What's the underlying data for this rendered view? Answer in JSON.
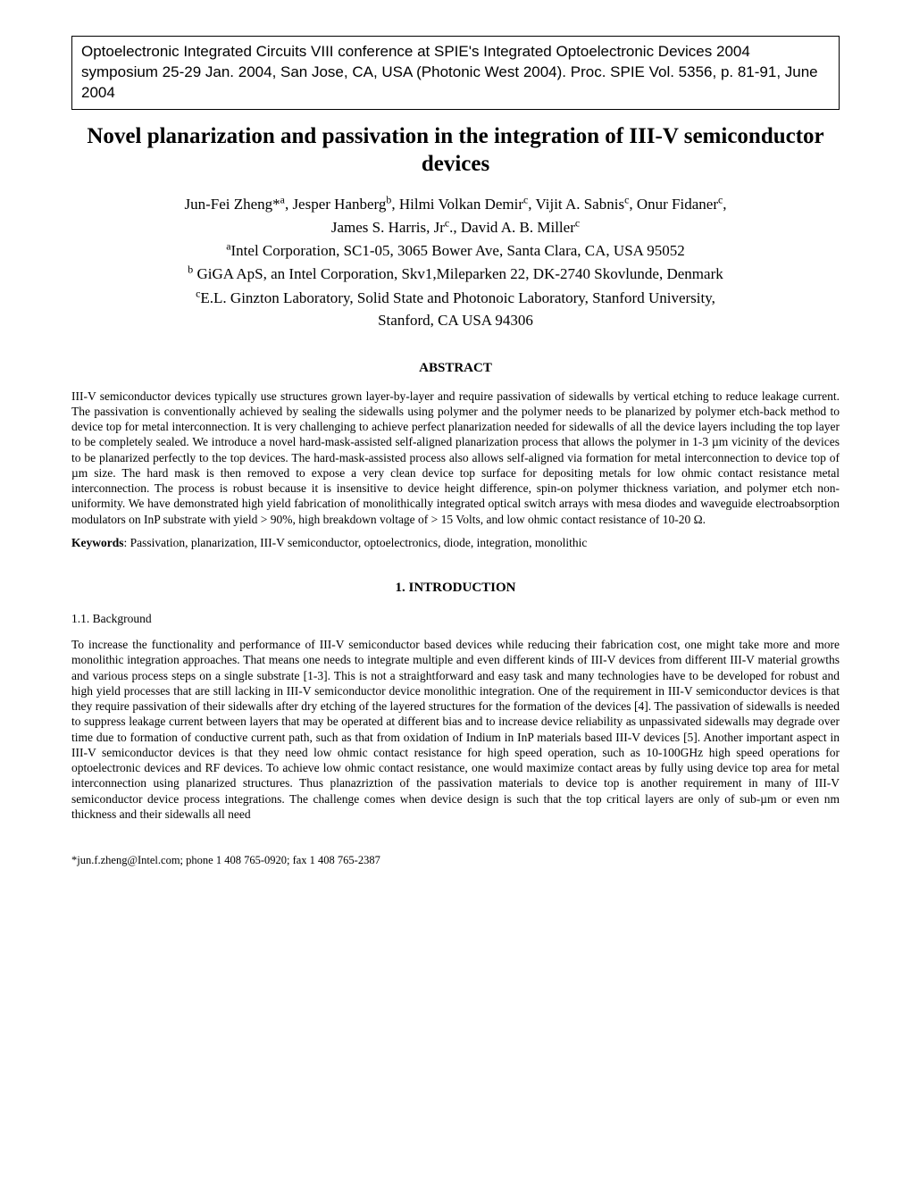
{
  "conference": {
    "text": "Optoelectronic Integrated Circuits VIII conference at SPIE's Integrated Optoelectronic Devices 2004 symposium 25-29 Jan. 2004, San Jose, CA, USA (Photonic West 2004). Proc. SPIE Vol. 5356, p. 81-91, June 2004"
  },
  "title": "Novel planarization and passivation in the integration of III-V semiconductor devices",
  "authors_line1_html": "Jun-Fei Zheng*<sup>a</sup>, Jesper Hanberg<sup>b</sup>, Hilmi Volkan Demir<sup>c</sup>, Vijit A. Sabnis<sup>c</sup>, Onur Fidaner<sup>c</sup>,",
  "authors_line2_html": "James S. Harris, Jr<sup>c</sup>.,  David A. B. Miller<sup>c</sup>",
  "affil_a_html": "<sup>a</sup>Intel Corporation, SC1-05, 3065 Bower Ave, Santa Clara, CA, USA 95052",
  "affil_b_html": "<sup>b</sup> GiGA ApS, an Intel Corporation, Skv1,Mileparken 22, DK-2740 Skovlunde, Denmark",
  "affil_c_html": "<sup>c</sup>E.L. Ginzton Laboratory, Solid State and Photonoic Laboratory, Stanford University,",
  "affil_c2": "Stanford, CA USA 94306",
  "abstract_heading": "ABSTRACT",
  "abstract_text": "III-V semiconductor devices typically use structures grown layer-by-layer and require passivation of sidewalls by vertical etching to reduce leakage current. The passivation is conventionally achieved by sealing the sidewalls using polymer and the polymer needs to be planarized by polymer etch-back method to device top for metal interconnection. It is very challenging to achieve perfect planarization needed for sidewalls of all the device layers including the top layer to be completely sealed. We introduce a novel hard-mask-assisted self-aligned planarization process that allows the polymer in 1-3 µm vicinity of the devices to be planarized perfectly to the top devices. The hard-mask-assisted process also allows self-aligned via formation for metal interconnection to device top of µm size. The hard mask is then removed to expose a very clean device top surface for depositing metals for low ohmic contact resistance metal interconnection. The process is robust because it is insensitive to device height difference, spin-on polymer thickness variation, and polymer etch non-uniformity. We have demonstrated high yield fabrication of monolithically integrated optical switch arrays with mesa diodes and waveguide electroabsorption modulators on InP substrate with yield > 90%, high breakdown voltage of > 15 Volts, and low ohmic contact resistance of 10-20 Ω.",
  "keywords_label": "Keywords",
  "keywords_text": ": Passivation, planarization, III-V semiconductor, optoelectronics, diode, integration, monolithic",
  "section1_heading": "1.   INTRODUCTION",
  "section1_1_heading": "1.1. Background",
  "section1_1_text": "To increase the functionality and performance of III-V semiconductor based devices while reducing their fabrication cost, one might take more and more monolithic integration approaches. That means one needs to integrate multiple and even different kinds of III-V devices from different III-V material growths and various process steps on a single substrate [1-3]. This is not a straightforward and easy task and many technologies have to be developed for robust and high yield processes that are still lacking in III-V semiconductor device monolithic integration.  One of the requirement in III-V semiconductor devices is that they require passivation of their sidewalls after dry etching of the layered structures for the formation of the devices [4].  The passivation of sidewalls is needed to suppress leakage current between layers that may be operated at different bias and to increase device reliability as unpassivated sidewalls may degrade over time due to formation of conductive current path, such as that from oxidation of Indium in InP materials based III-V devices [5]. Another important aspect in III-V semiconductor devices is that they need low ohmic contact resistance for high speed operation, such as 10-100GHz high speed operations for optoelectronic devices and RF devices.  To achieve low ohmic contact resistance, one would maximize contact areas by fully using device top area for metal interconnection using planarized structures. Thus planazriztion of the passivation materials to device top is another requirement  in  many  of III-V semiconductor device process integrations.  The challenge comes when device design is such that the top critical layers are only of sub-µm or even nm thickness and their sidewalls all need",
  "footnote": "*jun.f.zheng@Intel.com; phone 1 408 765-0920; fax 1 408 765-2387"
}
